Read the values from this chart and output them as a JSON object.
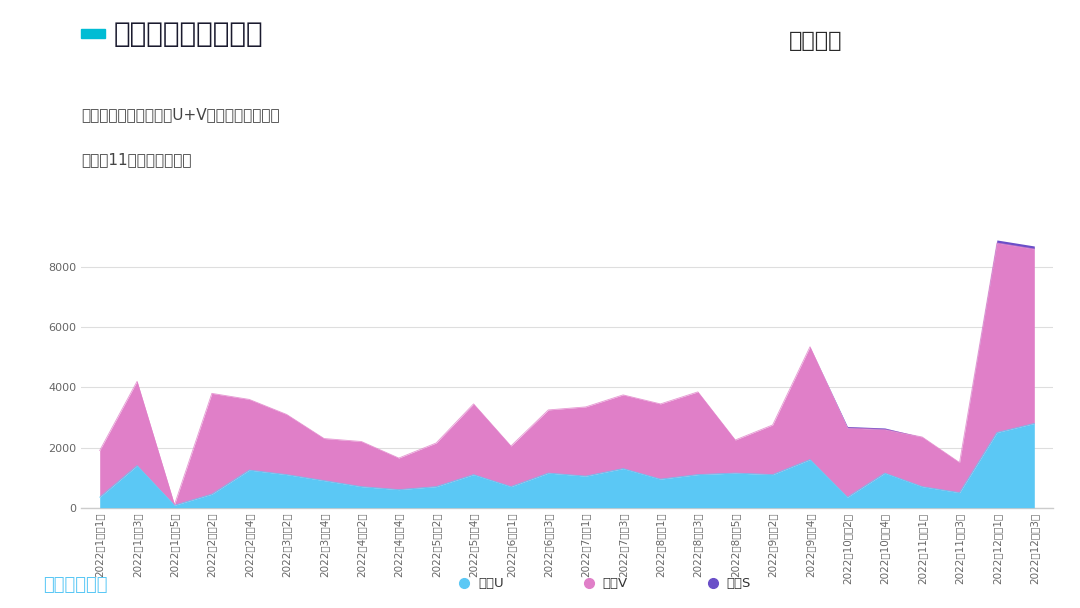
{
  "title": "合众的周度交付情况",
  "subtitle_line1": "从整个交付来看，哪吒U+V是主要的交付主力",
  "subtitle_line2": "哪吒在11月开始逐步拉高",
  "brand_name": "哪吒汽车",
  "watermark": "汽车电子设计",
  "legend_labels": [
    "哪吒U",
    "哪吒V",
    "哪吒S"
  ],
  "color_U": "#5BC8F5",
  "color_V": "#E07FC8",
  "color_S": "#6A4FC8",
  "bg_color": "#FFFFFF",
  "ylim": [
    0,
    9500
  ],
  "yticks": [
    0,
    2000,
    4000,
    6000,
    8000
  ],
  "x_labels": [
    "2022年1月第1周",
    "2022年1月第3周",
    "2022年1月第5周",
    "2022年2月第2周",
    "2022年2月第4周",
    "2022年3月第2周",
    "2022年3月第4周",
    "2022年4月第2周",
    "2022年4月第4周",
    "2022年5月第2周",
    "2022年5月第4周",
    "2022年6月第1周",
    "2022年6月第3周",
    "2022年7月第1周",
    "2022年7月第3周",
    "2022年8月第1周",
    "2022年8月第3周",
    "2022年8月第5周",
    "2022年9月第2周",
    "2022年9月第4周",
    "2022年10月第2周",
    "2022年10月第4周",
    "2022年11月第1周",
    "2022年11月第3周",
    "2022年12月第1周",
    "2022年12月第3周"
  ],
  "data_U": [
    350,
    1400,
    80,
    450,
    1250,
    1100,
    900,
    700,
    600,
    700,
    1100,
    700,
    1150,
    1050,
    1300,
    950,
    1100,
    1150,
    1100,
    1600,
    350,
    1150,
    700,
    500,
    2500,
    2800
  ],
  "data_V_total": [
    1900,
    4200,
    100,
    3800,
    3600,
    3100,
    2300,
    2200,
    1650,
    2150,
    3450,
    2050,
    3250,
    3350,
    3750,
    3450,
    3850,
    2250,
    2750,
    5350,
    2650,
    2600,
    2350,
    1500,
    8800,
    8600
  ],
  "data_S": [
    0,
    0,
    0,
    0,
    0,
    0,
    0,
    0,
    0,
    0,
    0,
    0,
    0,
    0,
    0,
    0,
    0,
    0,
    0,
    0,
    2700,
    2650,
    2350,
    1500,
    8900,
    8700
  ],
  "title_color": "#1A1A2E",
  "subtitle_color": "#444444",
  "title_bar_color": "#00BCD4",
  "grid_color": "#DEDEDE",
  "axis_color": "#CCCCCC",
  "tick_color": "#666666",
  "title_fontsize": 20,
  "subtitle_fontsize": 11,
  "tick_fontsize": 7.5
}
